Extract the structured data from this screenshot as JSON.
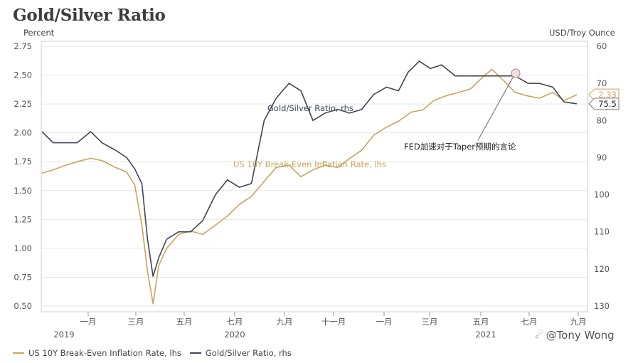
{
  "title": "Gold/Silver Ratio",
  "watermark": "@Tony Wong",
  "colors": {
    "inflation": "#c8a45c",
    "ratio": "#3e4556",
    "grid": "#e6e6e6"
  },
  "legend": {
    "item1": "US 10Y Break-Even Inflation Rate, lhs",
    "item2": "Gold/Silver Ratio, rhs"
  },
  "chart_data": {
    "type": "line",
    "left_axis": {
      "unit": "Percent",
      "ticks": [
        "0.50",
        "0.75",
        "1.00",
        "1.25",
        "1.50",
        "1.75",
        "2.00",
        "2.25",
        "2.50",
        "2.75"
      ],
      "range": [
        0.5,
        2.75
      ]
    },
    "right_axis": {
      "unit": "USD/Troy Ounce",
      "ticks": [
        "60",
        "70",
        "80",
        "90",
        "100",
        "110",
        "120",
        "130"
      ],
      "range": [
        130,
        60
      ],
      "inverted": true
    },
    "x_ticks": [
      "一月",
      "三月",
      "五月",
      "七月",
      "九月",
      "十一月",
      "一月",
      "三月",
      "五月",
      "七月",
      "九月"
    ],
    "x_years": [
      "2019",
      "2020",
      "2021"
    ],
    "annotations": {
      "ratio_label": "Gold/Silver Ratio, rhs",
      "inflation_label": "US 10Y Break-Even Inflation Rate, lhs",
      "fed_note": "FED加速对于Taper预期的言论",
      "last_inflation": "2.33",
      "last_ratio": "75.5"
    },
    "series": [
      {
        "name": "US 10Y Break-Even Inflation Rate, lhs",
        "axis": "left",
        "points": [
          [
            "2019-11-01",
            1.65
          ],
          [
            "2019-11-15",
            1.68
          ],
          [
            "2019-12-01",
            1.72
          ],
          [
            "2019-12-15",
            1.75
          ],
          [
            "2020-01-01",
            1.78
          ],
          [
            "2020-01-15",
            1.76
          ],
          [
            "2020-02-01",
            1.7
          ],
          [
            "2020-02-15",
            1.66
          ],
          [
            "2020-02-25",
            1.55
          ],
          [
            "2020-03-05",
            1.2
          ],
          [
            "2020-03-12",
            0.8
          ],
          [
            "2020-03-19",
            0.52
          ],
          [
            "2020-03-26",
            0.85
          ],
          [
            "2020-04-05",
            1.0
          ],
          [
            "2020-04-20",
            1.12
          ],
          [
            "2020-05-05",
            1.15
          ],
          [
            "2020-05-20",
            1.12
          ],
          [
            "2020-06-05",
            1.2
          ],
          [
            "2020-06-20",
            1.28
          ],
          [
            "2020-07-05",
            1.38
          ],
          [
            "2020-07-20",
            1.45
          ],
          [
            "2020-08-05",
            1.58
          ],
          [
            "2020-08-20",
            1.7
          ],
          [
            "2020-09-05",
            1.72
          ],
          [
            "2020-09-20",
            1.62
          ],
          [
            "2020-10-05",
            1.68
          ],
          [
            "2020-10-20",
            1.72
          ],
          [
            "2020-11-05",
            1.7
          ],
          [
            "2020-11-20",
            1.78
          ],
          [
            "2020-12-05",
            1.85
          ],
          [
            "2020-12-20",
            1.98
          ],
          [
            "2021-01-05",
            2.05
          ],
          [
            "2021-01-20",
            2.1
          ],
          [
            "2021-02-05",
            2.18
          ],
          [
            "2021-02-20",
            2.2
          ],
          [
            "2021-03-05",
            2.28
          ],
          [
            "2021-03-20",
            2.32
          ],
          [
            "2021-04-05",
            2.35
          ],
          [
            "2021-04-20",
            2.38
          ],
          [
            "2021-05-05",
            2.48
          ],
          [
            "2021-05-17",
            2.55
          ],
          [
            "2021-06-01",
            2.45
          ],
          [
            "2021-06-15",
            2.35
          ],
          [
            "2021-07-01",
            2.32
          ],
          [
            "2021-07-15",
            2.3
          ],
          [
            "2021-08-01",
            2.35
          ],
          [
            "2021-08-15",
            2.28
          ],
          [
            "2021-08-31",
            2.33
          ]
        ]
      },
      {
        "name": "Gold/Silver Ratio, rhs",
        "axis": "right",
        "points": [
          [
            "2019-11-01",
            83
          ],
          [
            "2019-11-15",
            86
          ],
          [
            "2019-12-01",
            86
          ],
          [
            "2019-12-15",
            86
          ],
          [
            "2020-01-01",
            83
          ],
          [
            "2020-01-15",
            86
          ],
          [
            "2020-02-01",
            88
          ],
          [
            "2020-02-15",
            90
          ],
          [
            "2020-02-25",
            93
          ],
          [
            "2020-03-05",
            97
          ],
          [
            "2020-03-12",
            112
          ],
          [
            "2020-03-19",
            122
          ],
          [
            "2020-03-26",
            117
          ],
          [
            "2020-04-05",
            112
          ],
          [
            "2020-04-20",
            110
          ],
          [
            "2020-05-05",
            110
          ],
          [
            "2020-05-20",
            107
          ],
          [
            "2020-06-05",
            100
          ],
          [
            "2020-06-20",
            96
          ],
          [
            "2020-07-05",
            98
          ],
          [
            "2020-07-20",
            97
          ],
          [
            "2020-08-05",
            80
          ],
          [
            "2020-08-20",
            74
          ],
          [
            "2020-09-05",
            70
          ],
          [
            "2020-09-20",
            72
          ],
          [
            "2020-10-05",
            80
          ],
          [
            "2020-10-20",
            78
          ],
          [
            "2020-11-05",
            77
          ],
          [
            "2020-11-20",
            78
          ],
          [
            "2020-12-05",
            77
          ],
          [
            "2020-12-20",
            73
          ],
          [
            "2021-01-05",
            71
          ],
          [
            "2021-01-20",
            72
          ],
          [
            "2021-02-01",
            67
          ],
          [
            "2021-02-15",
            64
          ],
          [
            "2021-03-01",
            66
          ],
          [
            "2021-03-15",
            65
          ],
          [
            "2021-04-01",
            68
          ],
          [
            "2021-04-15",
            68
          ],
          [
            "2021-05-01",
            68
          ],
          [
            "2021-05-17",
            68
          ],
          [
            "2021-06-01",
            68
          ],
          [
            "2021-06-15",
            68
          ],
          [
            "2021-07-01",
            70
          ],
          [
            "2021-07-15",
            70
          ],
          [
            "2021-08-01",
            71
          ],
          [
            "2021-08-15",
            75
          ],
          [
            "2021-08-31",
            75.5
          ]
        ]
      }
    ]
  }
}
